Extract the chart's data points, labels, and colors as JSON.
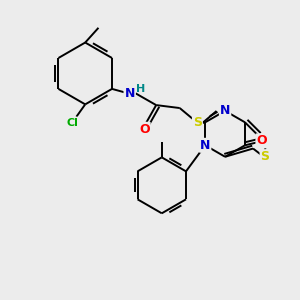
{
  "bg_color": "#ececec",
  "bond_color": "#000000",
  "bond_width": 1.4,
  "atom_colors": {
    "N": "#0000cc",
    "S": "#cccc00",
    "O": "#ff0000",
    "Cl": "#00aa00",
    "H": "#008888",
    "C": "#000000"
  },
  "font_size": 8.5
}
